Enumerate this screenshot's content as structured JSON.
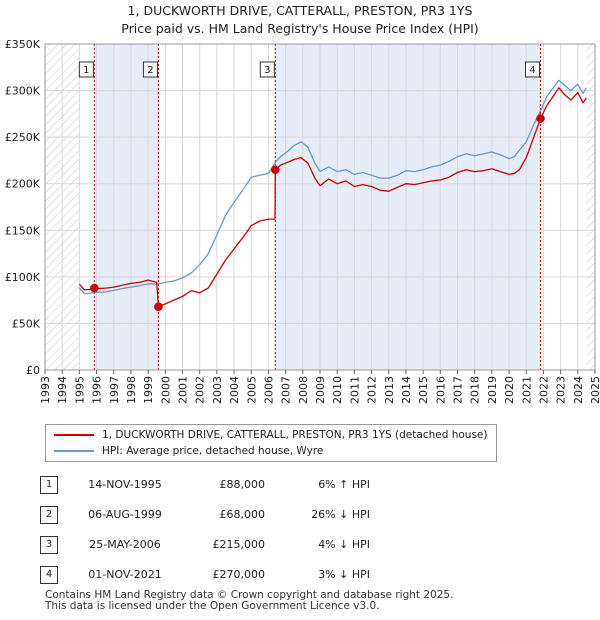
{
  "header": {
    "title_line1": "1, DUCKWORTH DRIVE, CATTERALL, PRESTON, PR3 1YS",
    "title_line2": "Price paid vs. HM Land Registry's House Price Index (HPI)"
  },
  "chart_data": {
    "type": "line",
    "title": "1, DUCKWORTH DRIVE, CATTERALL, PRESTON, PR3 1YS — Price paid vs. HM Land Registry's House Price Index (HPI)",
    "xlim": [
      1993,
      2025
    ],
    "ylim": [
      0,
      350000
    ],
    "y_ticks": [
      0,
      50000,
      100000,
      150000,
      200000,
      250000,
      300000,
      350000
    ],
    "y_tick_labels": [
      "£0",
      "£50K",
      "£100K",
      "£150K",
      "£200K",
      "£250K",
      "£300K",
      "£350K"
    ],
    "x_ticks": [
      1993,
      1994,
      1995,
      1996,
      1997,
      1998,
      1999,
      2000,
      2001,
      2002,
      2003,
      2004,
      2005,
      2006,
      2007,
      2008,
      2009,
      2010,
      2011,
      2012,
      2013,
      2014,
      2015,
      2016,
      2017,
      2018,
      2019,
      2020,
      2021,
      2022,
      2023,
      2024,
      2025
    ],
    "x_tick_labels": [
      "1993",
      "1994",
      "1995",
      "1996",
      "1997",
      "1998",
      "1999",
      "2000",
      "2001",
      "2002",
      "2003",
      "2004",
      "2005",
      "2006",
      "2007",
      "2008",
      "2009",
      "2010",
      "2011",
      "2012",
      "2013",
      "2014",
      "2015",
      "2016",
      "2017",
      "2018",
      "2019",
      "2020",
      "2021",
      "2022",
      "2023",
      "2024",
      "2025"
    ],
    "hatched_ranges": [
      [
        1993,
        1995.0
      ],
      [
        2024.5,
        2025
      ]
    ],
    "shaded_ranges": [
      [
        1995.87,
        1999.6
      ],
      [
        2006.4,
        2021.83
      ]
    ],
    "series": [
      {
        "name": "1, DUCKWORTH DRIVE, CATTERALL, PRESTON, PR3 1YS (detached house)",
        "color": "#cc0000",
        "x": [
          1995.0,
          1995.3,
          1995.6,
          1995.87,
          1996.2,
          1996.6,
          1997.0,
          1997.5,
          1998.0,
          1998.5,
          1999.0,
          1999.5,
          1999.6,
          2000.0,
          2000.5,
          2001.0,
          2001.5,
          2002.0,
          2002.5,
          2003.0,
          2003.5,
          2004.0,
          2004.5,
          2005.0,
          2005.5,
          2006.0,
          2006.38,
          2006.4,
          2006.7,
          2007.0,
          2007.5,
          2007.9,
          2008.3,
          2008.7,
          2009.0,
          2009.5,
          2010.0,
          2010.5,
          2011.0,
          2011.5,
          2012.0,
          2012.5,
          2013.0,
          2013.5,
          2014.0,
          2014.5,
          2015.0,
          2015.5,
          2016.0,
          2016.5,
          2017.0,
          2017.5,
          2018.0,
          2018.5,
          2019.0,
          2019.5,
          2020.0,
          2020.3,
          2020.6,
          2021.0,
          2021.4,
          2021.83,
          2022.2,
          2022.5,
          2022.9,
          2023.2,
          2023.6,
          2024.0,
          2024.3,
          2024.5
        ],
        "y": [
          92000,
          86000,
          86500,
          88000,
          87500,
          88000,
          89000,
          91000,
          93000,
          94000,
          96500,
          94000,
          68000,
          71000,
          75000,
          79000,
          85000,
          83000,
          88000,
          103000,
          118000,
          130000,
          142000,
          155000,
          160000,
          162000,
          162000,
          215000,
          220000,
          222000,
          226000,
          228000,
          222000,
          206000,
          198000,
          205000,
          200000,
          203000,
          197000,
          199000,
          197000,
          193000,
          192000,
          196000,
          200000,
          199000,
          201000,
          203000,
          204000,
          207000,
          212000,
          215000,
          213000,
          214000,
          216000,
          213000,
          210000,
          211000,
          215000,
          228000,
          248000,
          270000,
          284000,
          292000,
          303000,
          296000,
          290000,
          298000,
          287000,
          292000
        ]
      },
      {
        "name": "HPI: Average price, detached house, Wyre",
        "color": "#6699cc",
        "x": [
          1995.0,
          1995.3,
          1995.6,
          1995.87,
          1996.2,
          1996.6,
          1997.0,
          1997.5,
          1998.0,
          1998.5,
          1999.0,
          1999.5,
          2000.0,
          2000.5,
          2001.0,
          2001.5,
          2002.0,
          2002.5,
          2003.0,
          2003.5,
          2004.0,
          2004.5,
          2005.0,
          2005.5,
          2006.0,
          2006.4,
          2006.7,
          2007.0,
          2007.5,
          2007.9,
          2008.3,
          2008.7,
          2009.0,
          2009.5,
          2010.0,
          2010.5,
          2011.0,
          2011.5,
          2012.0,
          2012.5,
          2013.0,
          2013.5,
          2014.0,
          2014.5,
          2015.0,
          2015.5,
          2016.0,
          2016.5,
          2017.0,
          2017.5,
          2018.0,
          2018.5,
          2019.0,
          2019.5,
          2020.0,
          2020.3,
          2020.6,
          2021.0,
          2021.4,
          2021.83,
          2022.2,
          2022.5,
          2022.9,
          2023.2,
          2023.6,
          2024.0,
          2024.3,
          2024.5
        ],
        "y": [
          88000,
          82000,
          82500,
          83000,
          83500,
          84000,
          85500,
          87500,
          89000,
          90500,
          92500,
          92000,
          94000,
          95500,
          99000,
          104000,
          113000,
          125000,
          145000,
          166000,
          180000,
          193000,
          207000,
          209000,
          211000,
          223000,
          229000,
          233000,
          241000,
          245000,
          239000,
          222000,
          213000,
          218000,
          213000,
          215000,
          210000,
          212000,
          209000,
          206000,
          206000,
          209000,
          214000,
          213000,
          215000,
          218000,
          220000,
          224000,
          229000,
          232000,
          230000,
          232000,
          234000,
          231000,
          227000,
          229000,
          236000,
          245000,
          262000,
          278000,
          294000,
          301000,
          311000,
          306000,
          300000,
          307000,
          297000,
          303000
        ]
      }
    ],
    "sales": [
      {
        "label": "1",
        "x": 1995.87,
        "y": 88000
      },
      {
        "label": "2",
        "x": 1999.6,
        "y": 68000
      },
      {
        "label": "3",
        "x": 2006.4,
        "y": 215000
      },
      {
        "label": "4",
        "x": 2021.83,
        "y": 270000
      }
    ]
  },
  "legend": {
    "property_label": "1, DUCKWORTH DRIVE, CATTERALL, PRESTON, PR3 1YS (detached house)",
    "hpi_label": "HPI: Average price, detached house, Wyre",
    "property_color": "#cc0000",
    "hpi_color": "#6699cc"
  },
  "sales_table": [
    {
      "num": "1",
      "date": "14-NOV-1995",
      "price": "£88,000",
      "hpi": "6% ↑ HPI"
    },
    {
      "num": "2",
      "date": "06-AUG-1999",
      "price": "£68,000",
      "hpi": "26% ↓ HPI"
    },
    {
      "num": "3",
      "date": "25-MAY-2006",
      "price": "£215,000",
      "hpi": "4% ↓ HPI"
    },
    {
      "num": "4",
      "date": "01-NOV-2021",
      "price": "£270,000",
      "hpi": "3% ↓ HPI"
    }
  ],
  "footer": {
    "line1": "Contains HM Land Registry data © Crown copyright and database right 2025.",
    "line2": "This data is licensed under the Open Government Licence v3.0."
  }
}
